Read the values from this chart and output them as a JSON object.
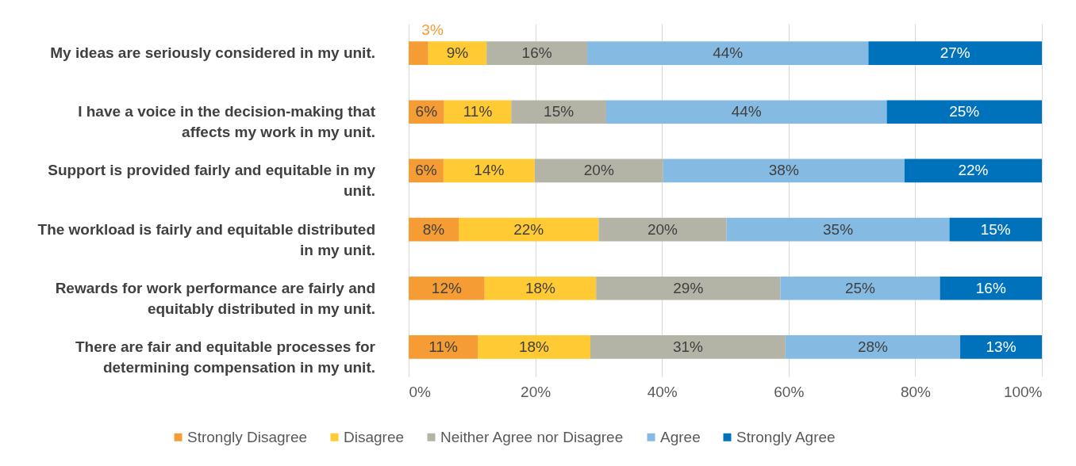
{
  "chart_data": {
    "type": "bar",
    "orientation": "horizontal",
    "stacked": true,
    "categories": [
      "My ideas are seriously considered in my unit.",
      "I have a voice in the decision-making that affects my work in my unit.",
      "Support is provided fairly and equitable in my unit.",
      "The workload is fairly and equitable distributed in my unit.",
      "Rewards for work performance are fairly and equitably distributed in my unit.",
      "There are fair and equitable processes for determining compensation in my unit."
    ],
    "series": [
      {
        "name": "Strongly Disagree",
        "color": "#f59d34",
        "values": [
          3.1,
          5.6,
          5.5,
          7.9,
          12.0,
          10.9
        ],
        "value_labels": [
          "3%",
          "6%",
          "6%",
          "8%",
          "12%",
          "11%"
        ]
      },
      {
        "name": "Disagree",
        "color": "#ffca33",
        "values": [
          9.2,
          10.6,
          14.4,
          22.1,
          17.6,
          17.8
        ],
        "value_labels": [
          "9%",
          "11%",
          "14%",
          "22%",
          "18%",
          "18%"
        ]
      },
      {
        "name": "Neither Agree nor Disagree",
        "color": "#b3b3a6",
        "values": [
          15.9,
          15.0,
          20.3,
          20.2,
          29.1,
          30.8
        ],
        "value_labels": [
          "16%",
          "15%",
          "20%",
          "20%",
          "29%",
          "31%"
        ]
      },
      {
        "name": "Agree",
        "color": "#85bbe3",
        "values": [
          44.4,
          44.3,
          38.1,
          35.2,
          25.2,
          27.6
        ],
        "value_labels": [
          "44%",
          "44%",
          "38%",
          "35%",
          "25%",
          "28%"
        ]
      },
      {
        "name": "Strongly Agree",
        "color": "#0072bc",
        "values": [
          27.4,
          24.5,
          21.7,
          14.6,
          16.1,
          12.9
        ],
        "value_labels": [
          "27%",
          "25%",
          "22%",
          "15%",
          "16%",
          "13%"
        ]
      }
    ],
    "xlim": [
      0,
      100
    ],
    "xticks": [
      {
        "value": 0,
        "label": "0%"
      },
      {
        "value": 20,
        "label": "20%"
      },
      {
        "value": 40,
        "label": "40%"
      },
      {
        "value": 60,
        "label": "60%"
      },
      {
        "value": 80,
        "label": "80%"
      },
      {
        "value": 100,
        "label": "100%"
      }
    ],
    "grid": "x",
    "legend": "bottom"
  }
}
